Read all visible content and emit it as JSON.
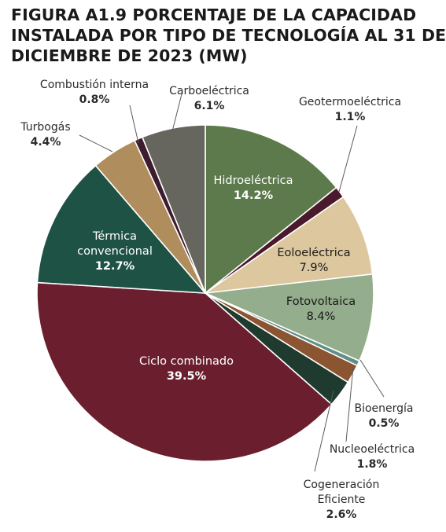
{
  "title_lines": [
    "FIGURA A1.9 PORCENTAJE DE LA CAPACIDAD",
    "INSTALADA POR TIPO DE TECNOLOGÍA AL 31 DE",
    "DICIEMBRE DE 2023 (MW)"
  ],
  "chart_data": {
    "type": "pie",
    "title": "FIGURA A1.9 PORCENTAJE DE LA CAPACIDAD INSTALADA POR TIPO DE TECNOLOGÍA AL 31 DE DICIEMBRE DE 2023 (MW)",
    "start": "top, clockwise",
    "slices": [
      {
        "label": [
          "Hidroeléctrica"
        ],
        "value": 14.2,
        "value_label": "14.2%",
        "color": "#5c7a4c",
        "text_color": "#ffffff",
        "label_position": "inside",
        "pct_bold": true
      },
      {
        "label": [
          "Geotermoeléctrica"
        ],
        "value": 1.1,
        "value_label": "1.1%",
        "color": "#4a1a2c",
        "text_color": "#2b2b2b",
        "label_position": "outside",
        "pct_bold": true
      },
      {
        "label": [
          "Eoloeléctrica"
        ],
        "value": 7.9,
        "value_label": "7.9%",
        "color": "#dcc79e",
        "text_color": "#1a1a1a",
        "label_position": "inside",
        "pct_bold": false
      },
      {
        "label": [
          "Fotovoltaica"
        ],
        "value": 8.4,
        "value_label": "8.4%",
        "color": "#94ad8c",
        "text_color": "#1a1a1a",
        "label_position": "inside",
        "pct_bold": false
      },
      {
        "label": [
          "Bioenergía"
        ],
        "value": 0.5,
        "value_label": "0.5%",
        "color": "#5f8f86",
        "text_color": "#2b2b2b",
        "label_position": "outside",
        "pct_bold": true
      },
      {
        "label": [
          "Nucleoeléctrica"
        ],
        "value": 1.8,
        "value_label": "1.8%",
        "color": "#8c5532",
        "text_color": "#2b2b2b",
        "label_position": "outside",
        "pct_bold": true
      },
      {
        "label": [
          "Cogeneración",
          "Eficiente"
        ],
        "value": 2.6,
        "value_label": "2.6%",
        "color": "#1f3a2e",
        "text_color": "#2b2b2b",
        "label_position": "outside",
        "pct_bold": true
      },
      {
        "label": [
          "Ciclo combinado"
        ],
        "value": 39.5,
        "value_label": "39.5%",
        "color": "#6b1f2e",
        "text_color": "#ffffff",
        "label_position": "inside",
        "pct_bold": true
      },
      {
        "label": [
          "Térmica",
          "convencional"
        ],
        "value": 12.7,
        "value_label": "12.7%",
        "color": "#1e5244",
        "text_color": "#ffffff",
        "label_position": "inside",
        "pct_bold": true
      },
      {
        "label": [
          "Turbogás"
        ],
        "value": 4.4,
        "value_label": "4.4%",
        "color": "#b08d5c",
        "text_color": "#2b2b2b",
        "label_position": "outside",
        "pct_bold": true
      },
      {
        "label": [
          "Combustión interna"
        ],
        "value": 0.8,
        "value_label": "0.8%",
        "color": "#3d1c2e",
        "text_color": "#2b2b2b",
        "label_position": "outside",
        "pct_bold": true
      },
      {
        "label": [
          "Carboeléctrica"
        ],
        "value": 6.1,
        "value_label": "6.1%",
        "color": "#66665f",
        "text_color": "#2b2b2b",
        "label_position": "outside",
        "pct_bold": true
      }
    ]
  }
}
